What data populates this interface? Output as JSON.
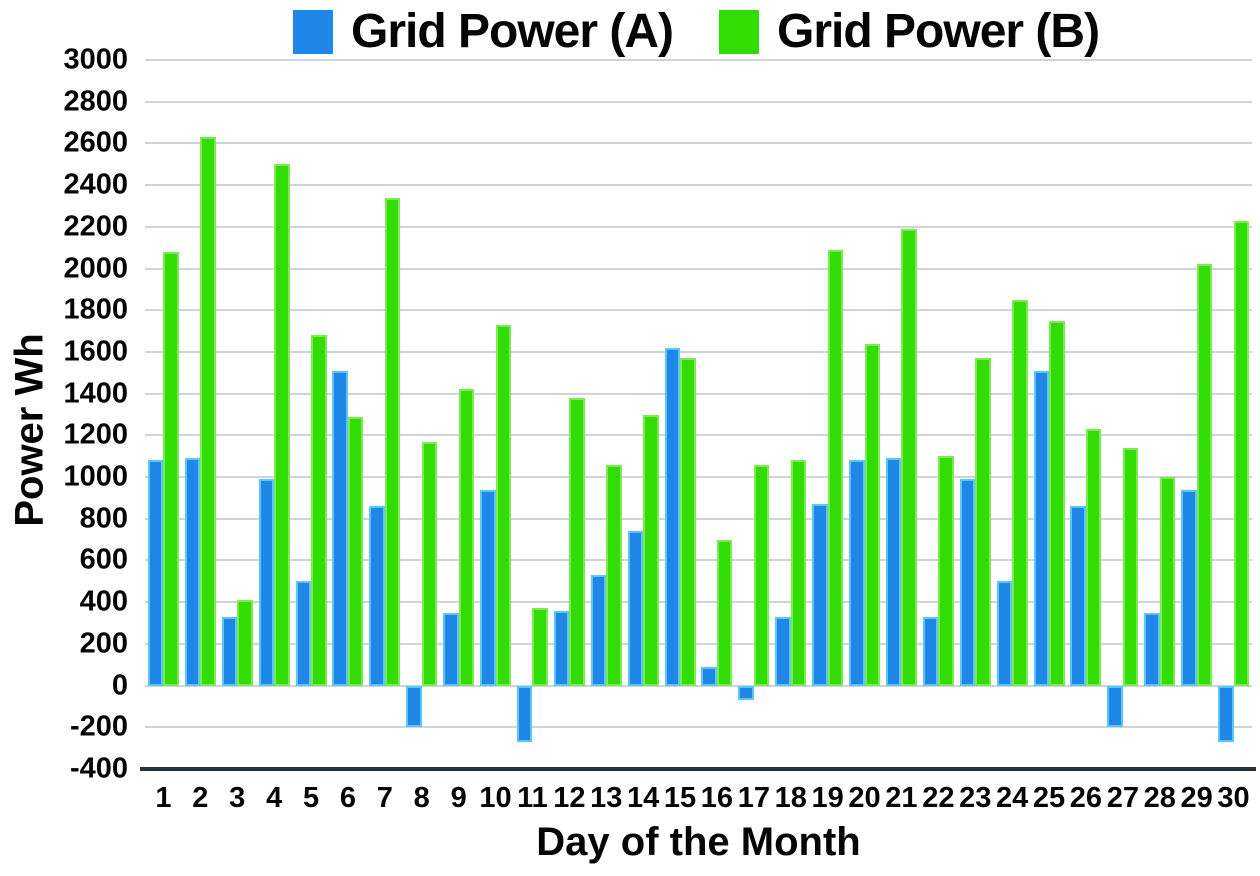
{
  "legend": [
    {
      "label": "Grid Power (A)"
    },
    {
      "label": "Grid Power (B)"
    }
  ],
  "chart_data": {
    "type": "bar",
    "title": "",
    "xlabel": "Day of the Month",
    "ylabel": "Power Wh",
    "x": [
      1,
      2,
      3,
      4,
      5,
      6,
      7,
      8,
      9,
      10,
      11,
      12,
      13,
      14,
      15,
      16,
      17,
      18,
      19,
      20,
      21,
      22,
      23,
      24,
      25,
      26,
      27,
      28,
      29,
      30
    ],
    "series": [
      {
        "name": "Grid Power (A)",
        "color": "#1f87e8",
        "border": "#5ac8f2",
        "values": [
          1080,
          1090,
          330,
          990,
          500,
          1510,
          860,
          -200,
          350,
          940,
          -270,
          360,
          530,
          740,
          1620,
          90,
          -70,
          330,
          870,
          1080,
          1090,
          330,
          990,
          500,
          1510,
          860,
          -200,
          350,
          940,
          -270
        ]
      },
      {
        "name": "Grid Power (B)",
        "color": "#32dc05",
        "border": "#7dea52",
        "values": [
          2080,
          2630,
          410,
          2500,
          1680,
          1290,
          2340,
          1170,
          1420,
          1730,
          370,
          1380,
          1060,
          1300,
          1570,
          700,
          1060,
          1080,
          2090,
          1640,
          2190,
          1100,
          1570,
          1850,
          1750,
          1230,
          1140,
          1000,
          2020,
          2230
        ]
      }
    ],
    "ylim": [
      -400,
      3000
    ],
    "yticks": [
      3000,
      2800,
      2600,
      2400,
      2200,
      2000,
      1800,
      1600,
      1400,
      1200,
      1000,
      800,
      600,
      400,
      200,
      0,
      -200,
      -400
    ],
    "grid": true,
    "legend_position": "top",
    "colors": {
      "gridline": "#cdd5d8",
      "axis_line": "#25343a",
      "text": "#050505",
      "background": "#ffffff"
    }
  }
}
